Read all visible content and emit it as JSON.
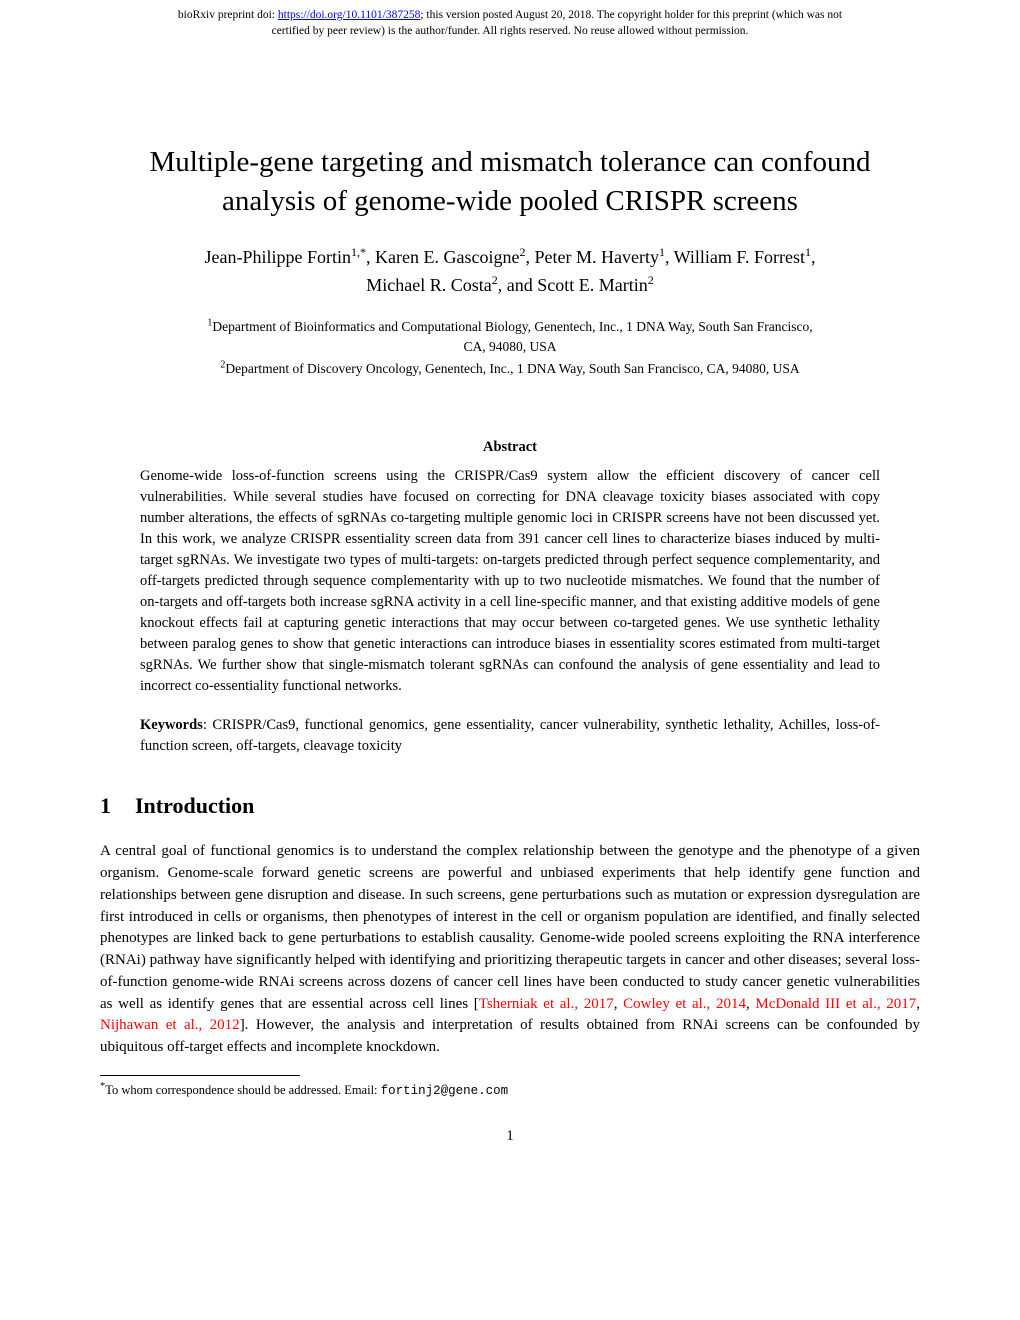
{
  "banner": {
    "prefix": "bioRxiv preprint doi: ",
    "doi_url": "https://doi.org/10.1101/387258",
    "middle": "; this version posted August 20, 2018. The copyright holder for this preprint (which was not",
    "line2": "certified by peer review) is the author/funder. All rights reserved. No reuse allowed without permission."
  },
  "title_line1": "Multiple-gene targeting and mismatch tolerance can confound",
  "title_line2": "analysis of genome-wide pooled CRISPR screens",
  "authors_line1_html": "Jean-Philippe Fortin<sup>1,*</sup>, Karen E. Gascoigne<sup>2</sup>, Peter M. Haverty<sup>1</sup>, William F. Forrest<sup>1</sup>,",
  "authors_line2_html": "Michael R. Costa<sup>2</sup>, and Scott E. Martin<sup>2</sup>",
  "affil1_html": "<sup>1</sup>Department of Bioinformatics and Computational Biology, Genentech, Inc., 1 DNA Way, South San Francisco,",
  "affil1b": "CA, 94080, USA",
  "affil2_html": "<sup>2</sup>Department of Discovery Oncology, Genentech, Inc., 1 DNA Way, South San Francisco, CA, 94080, USA",
  "abstract_heading": "Abstract",
  "abstract_body": "Genome-wide loss-of-function screens using the CRISPR/Cas9 system allow the efficient discovery of cancer cell vulnerabilities. While several studies have focused on correcting for DNA cleavage toxicity biases associated with copy number alterations, the effects of sgRNAs co-targeting multiple genomic loci in CRISPR screens have not been discussed yet. In this work, we analyze CRISPR essentiality screen data from 391 cancer cell lines to characterize biases induced by multi-target sgRNAs. We investigate two types of multi-targets: on-targets predicted through perfect sequence complementarity, and off-targets predicted through sequence complementarity with up to two nucleotide mismatches. We found that the number of on-targets and off-targets both increase sgRNA activity in a cell line-specific manner, and that existing additive models of gene knockout effects fail at capturing genetic interactions that may occur between co-targeted genes. We use synthetic lethality between paralog genes to show that genetic interactions can introduce biases in essentiality scores estimated from multi-target sgRNAs. We further show that single-mismatch tolerant sgRNAs can confound the analysis of gene essentiality and lead to incorrect co-essentiality functional networks.",
  "keywords_label": "Keywords",
  "keywords_text": ": CRISPR/Cas9, functional genomics, gene essentiality, cancer vulnerability, synthetic lethality, Achilles, loss-of-function screen, off-targets, cleavage toxicity",
  "section_number": "1",
  "section_title": "Introduction",
  "intro_para": "A central goal of functional genomics is to understand the complex relationship between the genotype and the phenotype of a given organism. Genome-scale forward genetic screens are powerful and unbiased experiments that help identify gene function and relationships between gene disruption and disease. In such screens, gene perturbations such as mutation or expression dysregulation are first introduced in cells or organisms, then phenotypes of interest in the cell or organism population are identified, and finally selected phenotypes are linked back to gene perturbations to establish causality. Genome-wide pooled screens exploiting the RNA interference (RNAi) pathway have significantly helped with identifying and prioritizing therapeutic targets in cancer and other diseases; several loss-of-function genome-wide RNAi screens across dozens of cancer cell lines have been conducted to study cancer genetic vulnerabilities as well as identify genes that are essential across cell lines [",
  "refs": {
    "r1": "Tsherniak et al., 2017",
    "r2": "Cowley et al., 2014",
    "r3": "McDonald III et al., 2017",
    "r4": "Nijhawan et al., 2012"
  },
  "intro_tail": "]. However, the analysis and interpretation of results obtained from RNAi screens can be confounded by ubiquitous off-target effects and incomplete knockdown.",
  "footnote_marker": "*",
  "footnote_text": "To whom correspondence should be addressed. Email: ",
  "footnote_email": "fortinj2@gene.com",
  "page_number": "1",
  "colors": {
    "link_blue": "#0000ee",
    "ref_red": "#ff0000",
    "text": "#000000",
    "background": "#ffffff"
  }
}
